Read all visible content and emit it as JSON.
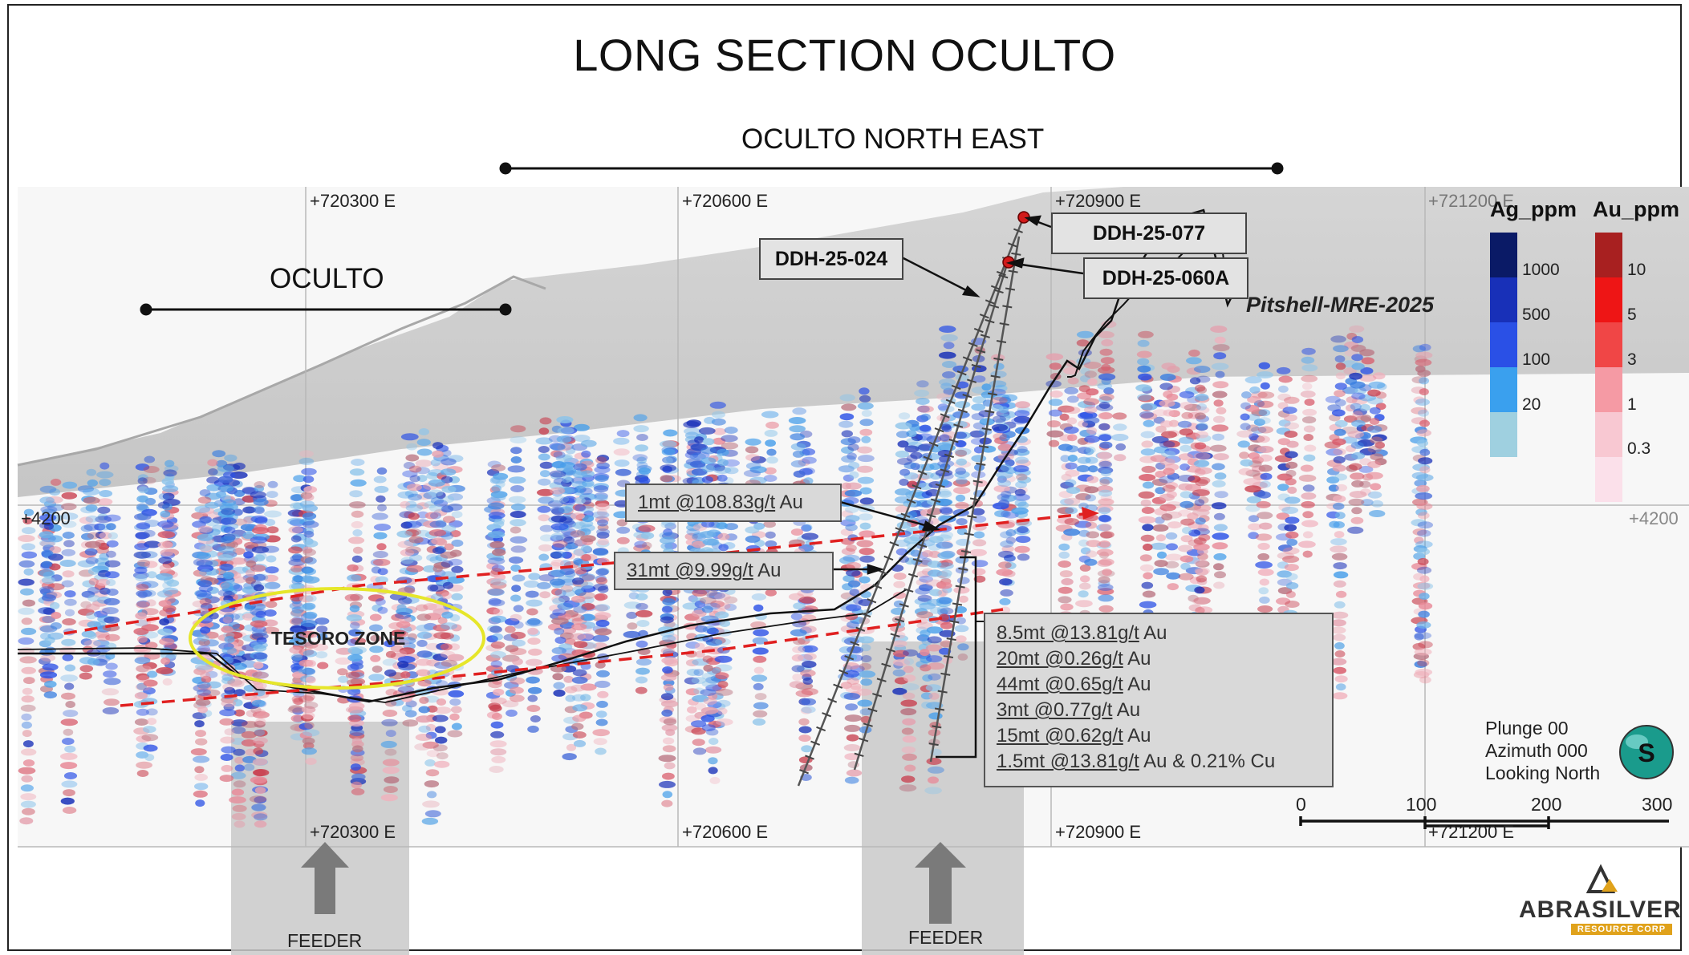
{
  "title": "LONG SECTION OCULTO",
  "zones": {
    "northeast": "OCULTO NORTH EAST",
    "oculto": "OCULTO",
    "tesoro": "TESORO ZONE"
  },
  "grid": {
    "eastings": [
      "+720300 E",
      "+720600 E",
      "+720900 E",
      "+721200 E"
    ],
    "elevation": "+4200"
  },
  "drillholes": {
    "ddh_077": "DDH-25-077",
    "ddh_060a": "DDH-25-060A",
    "ddh_024": "DDH-25-024"
  },
  "pitshell": "Pitshell-MRE-2025",
  "intercepts": {
    "upper": {
      "grade": "1mt @108.83g/t",
      "unit": "Au"
    },
    "middle": {
      "grade": "31mt @9.99g/t",
      "unit": "Au"
    },
    "list": [
      {
        "grade": "8.5mt @13.81g/t",
        "unit": "Au"
      },
      {
        "grade": "20mt @0.26g/t",
        "unit": "Au"
      },
      {
        "grade": "44mt @0.65g/t",
        "unit": "Au"
      },
      {
        "grade": "3mt @0.77g/t",
        "unit": "Au"
      },
      {
        "grade": "15mt @0.62g/t",
        "unit": "Au"
      },
      {
        "grade": "1.5mt @13.81g/t",
        "unit": "Au & 0.21% Cu"
      }
    ]
  },
  "feeders": [
    "FEEDER",
    "FEEDER"
  ],
  "legend": {
    "ag": {
      "title": "Ag_ppm",
      "labels": [
        "1000",
        "500",
        "100",
        "20"
      ],
      "colors": [
        "#0a1a66",
        "#1830b8",
        "#2a50e6",
        "#3aa0ee",
        "#9fd0e0"
      ]
    },
    "au": {
      "title": "Au_ppm",
      "labels": [
        "10",
        "5",
        "3",
        "1",
        "0.3"
      ],
      "colors": [
        "#a82020",
        "#ee1515",
        "#f04646",
        "#f59aa4",
        "#f8c8d2",
        "#fbe0ea"
      ]
    }
  },
  "orientation": {
    "plunge": "Plunge 00",
    "azimuth": "Azimuth 000",
    "looking": "Looking North",
    "compass": "S"
  },
  "scale": {
    "ticks": [
      "0",
      "100",
      "200",
      "300"
    ]
  },
  "logo": {
    "name": "ABRASILVER",
    "sub": "RESOURCE CORP"
  }
}
